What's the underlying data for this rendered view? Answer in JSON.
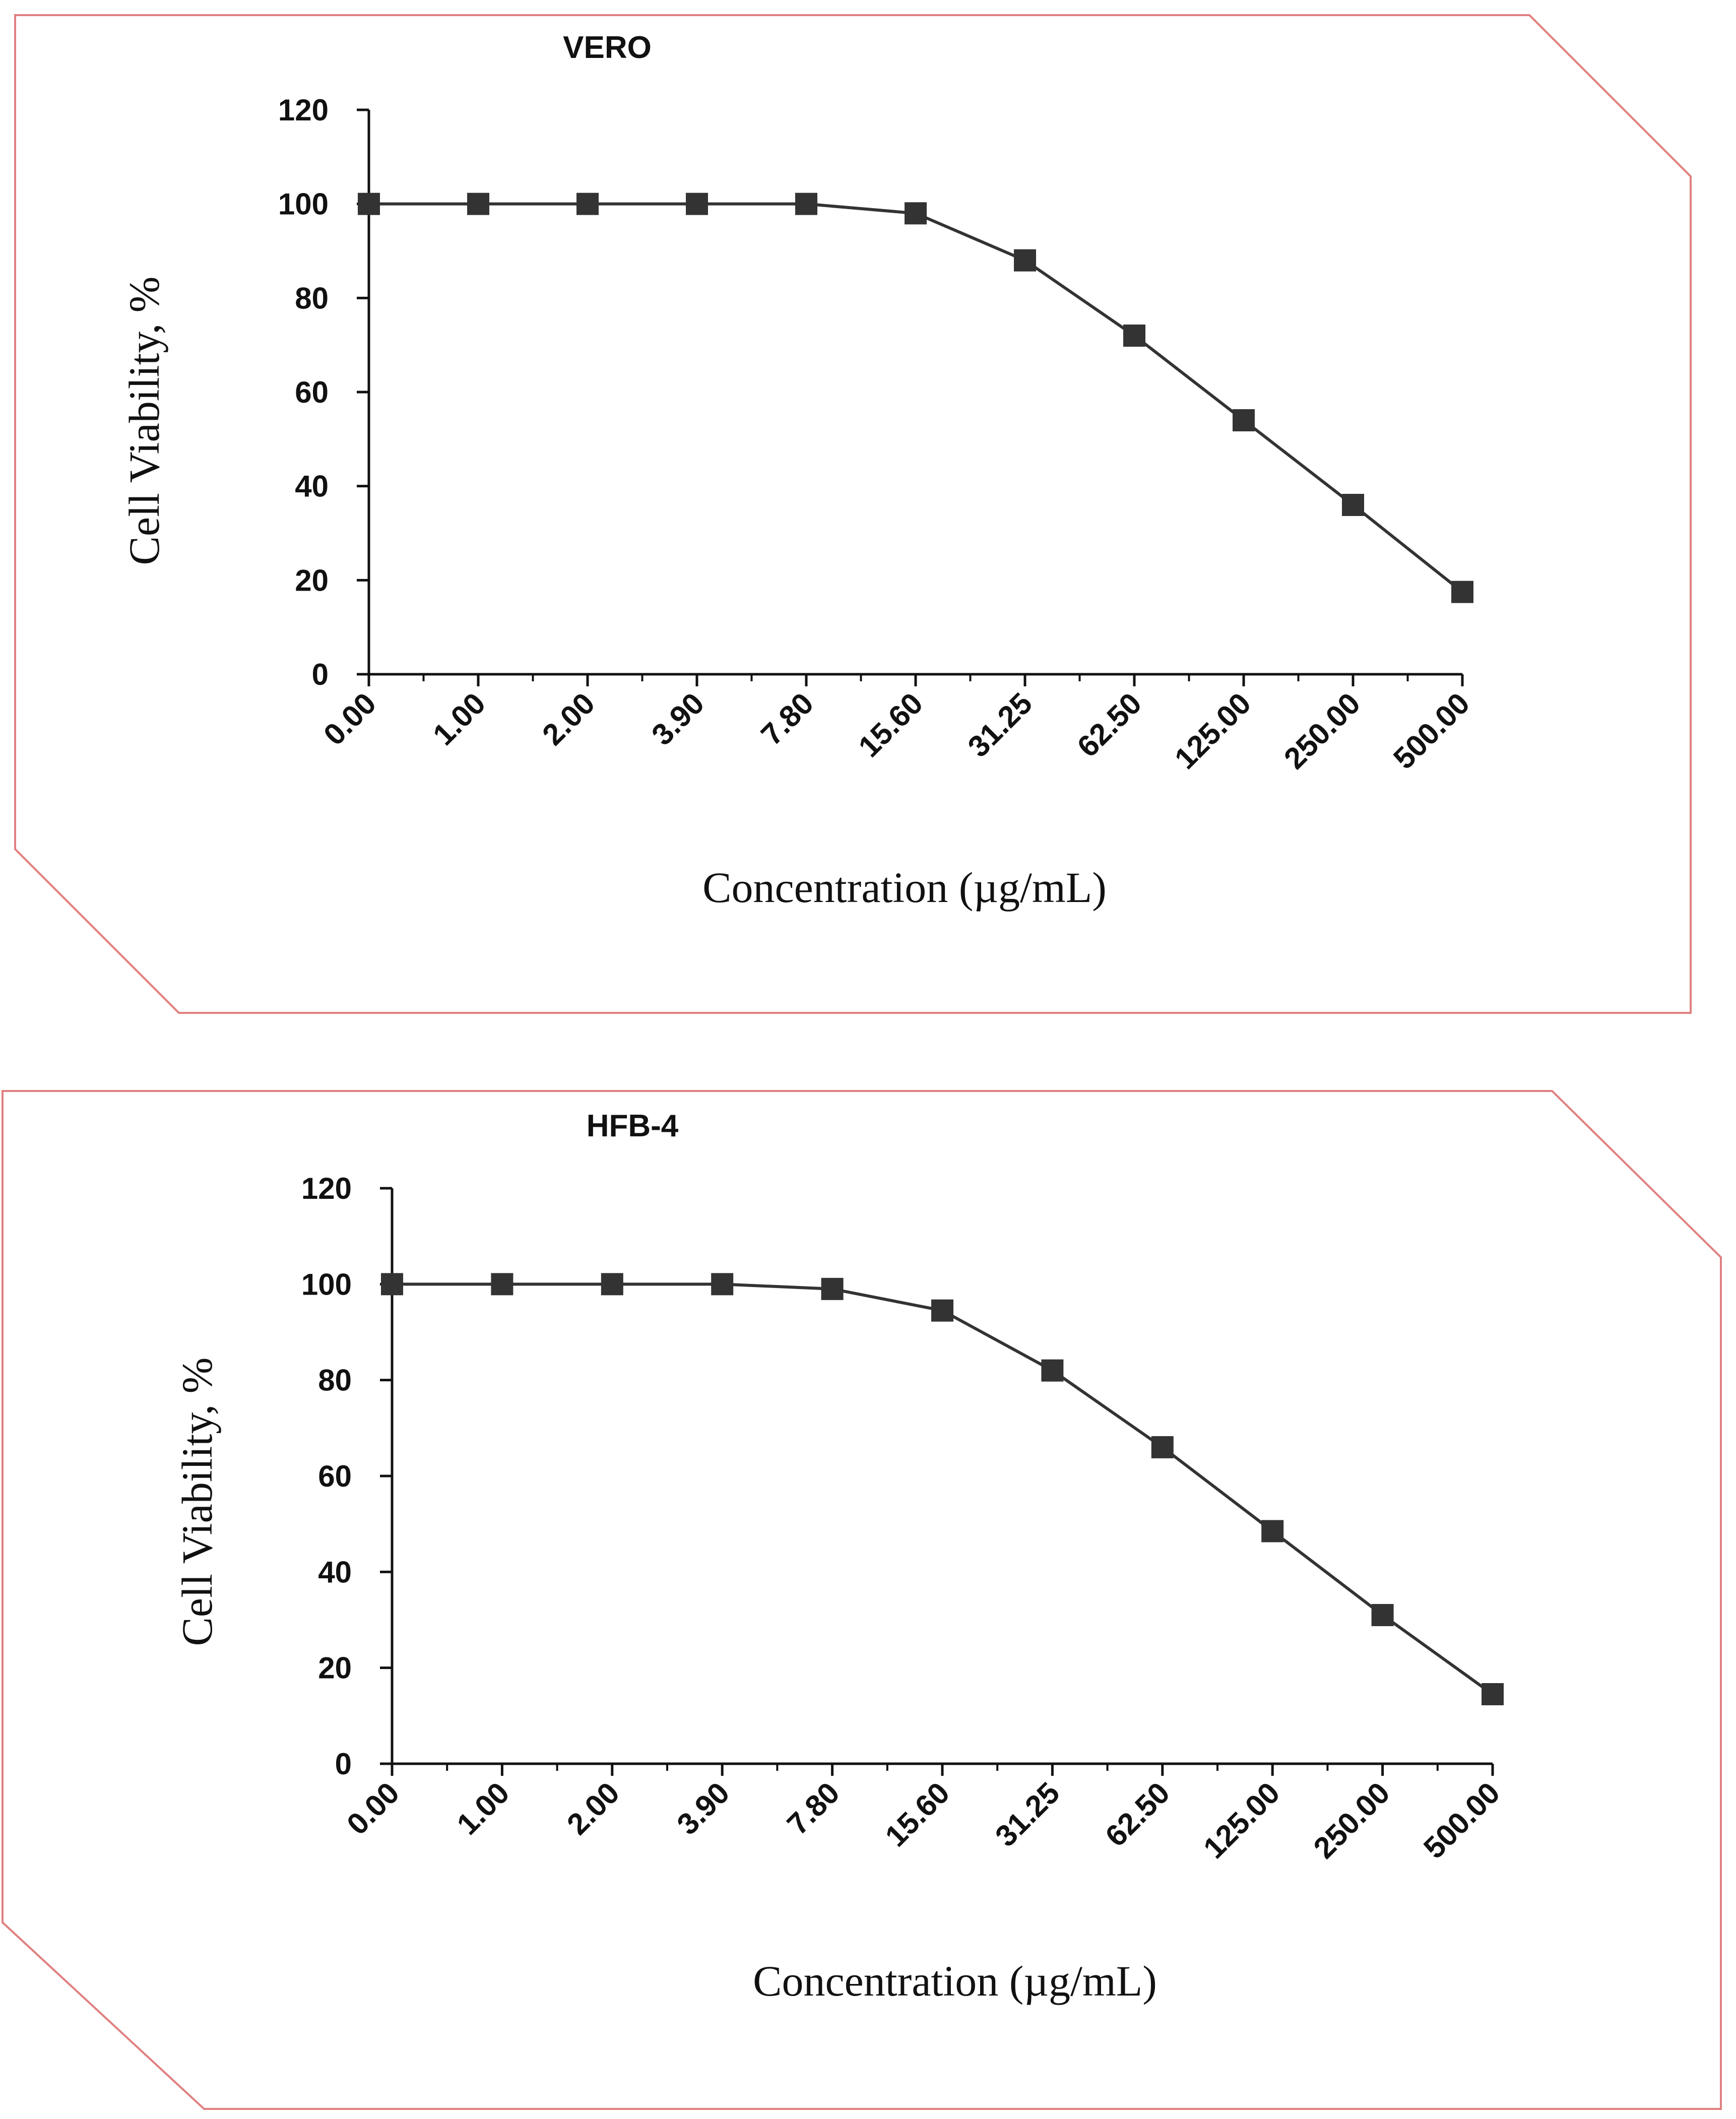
{
  "colors": {
    "frame": "#e08080",
    "line": "#333333",
    "marker": "#333333",
    "axis": "#111111"
  },
  "chart_data": [
    {
      "type": "line",
      "title": "VERO",
      "xlabel": "Concentration (µg/mL)",
      "ylabel": "Cell Viability, %",
      "ylim": [
        0,
        120
      ],
      "yticks": [
        "0",
        "20",
        "40",
        "60",
        "80",
        "100",
        "120"
      ],
      "categories": [
        "0.00",
        "1.00",
        "2.00",
        "3.90",
        "7.80",
        "15.60",
        "31.25",
        "62.50",
        "125.00",
        "250.00",
        "500.00"
      ],
      "series": [
        {
          "name": "VERO",
          "values": [
            100,
            100,
            100,
            100,
            100,
            98,
            88,
            72,
            54,
            36,
            17.5
          ]
        }
      ]
    },
    {
      "type": "line",
      "title": "HFB-4",
      "xlabel": "Concentration (µg/mL)",
      "ylabel": "Cell Viability, %",
      "ylim": [
        0,
        120
      ],
      "yticks": [
        "0",
        "20",
        "40",
        "60",
        "80",
        "100",
        "120"
      ],
      "categories": [
        "0.00",
        "1.00",
        "2.00",
        "3.90",
        "7.80",
        "15.60",
        "31.25",
        "62.50",
        "125.00",
        "250.00",
        "500.00"
      ],
      "series": [
        {
          "name": "HFB-4",
          "values": [
            100,
            100,
            100,
            100,
            99,
            94.5,
            82,
            66,
            48.5,
            31,
            14.5
          ]
        }
      ]
    }
  ]
}
